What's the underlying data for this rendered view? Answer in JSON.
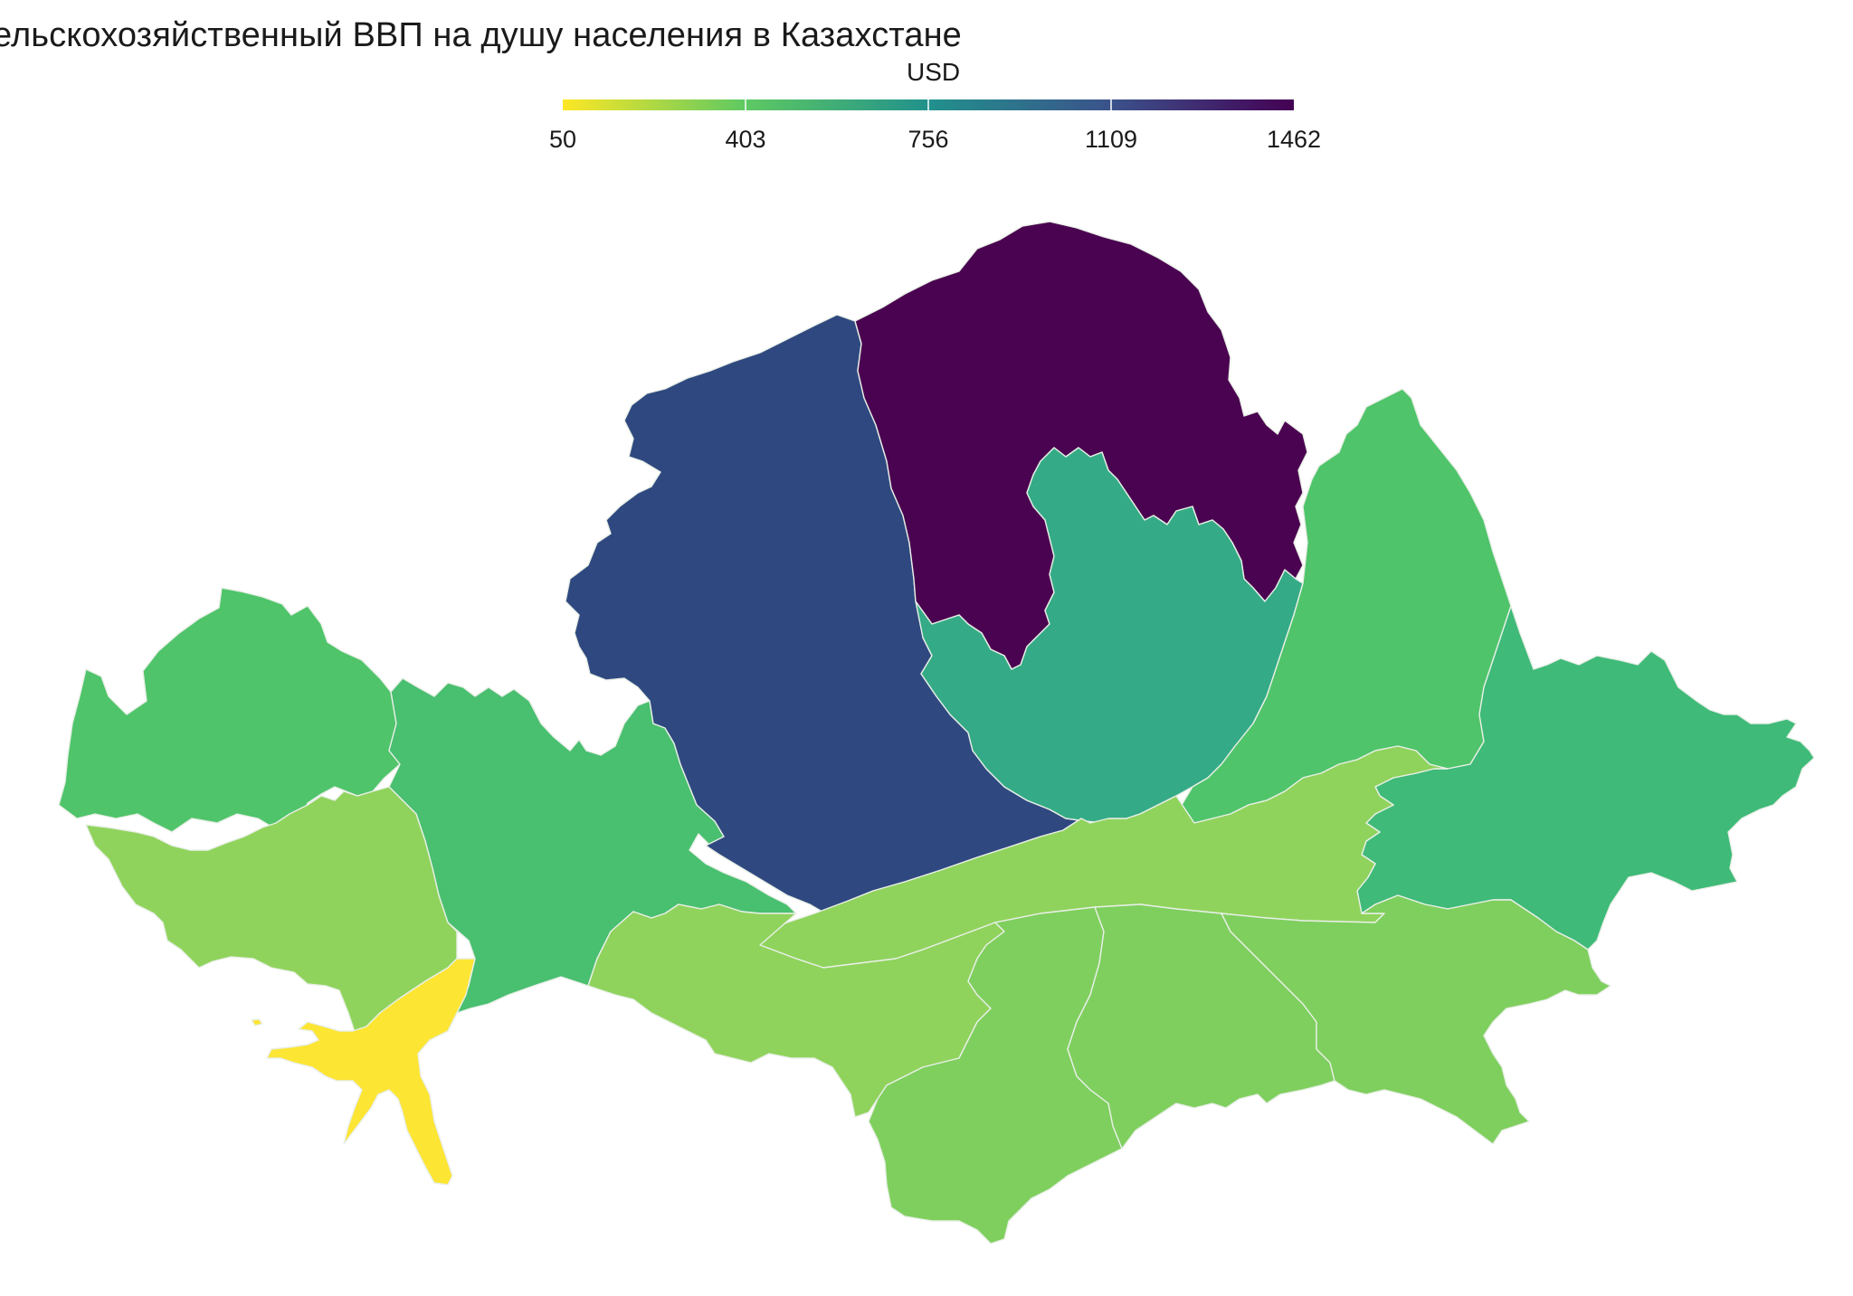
{
  "title": "ельскохозяйственный ВВП на душу населения в Казахстане",
  "legend": {
    "title": "USD",
    "ticks": [
      "50",
      "403",
      "756",
      "1109",
      "1462"
    ],
    "min": 50,
    "max": 1462,
    "gradient": [
      "#fde725",
      "#5ec962",
      "#21918c",
      "#3b528b",
      "#440154"
    ]
  },
  "colors": {
    "yellow": "#fde533",
    "light_green": "#8fd35c",
    "mid_green": "#7fcf5e",
    "green": "#4fc46a",
    "green_teal": "#3fba78",
    "teal": "#34ab86",
    "blue": "#2f4980",
    "purple": "#4a0350"
  }
}
